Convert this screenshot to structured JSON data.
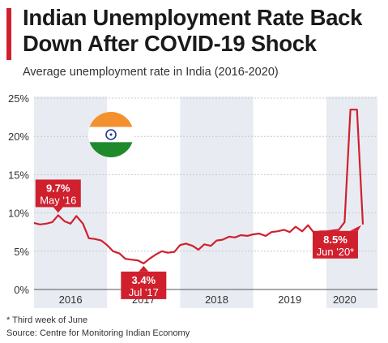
{
  "header": {
    "title": "Indian Unemployment Rate Back Down After COVID-19 Shock",
    "subtitle": "Average unemployment rate in India (2016-2020)"
  },
  "footer": {
    "footnote": "* Third week of June",
    "source": "Source: Centre for Monitoring Indian Economy"
  },
  "colors": {
    "accent": "#d0202e",
    "shade": "#e8ecf2",
    "grid": "#c8c8c8",
    "axis_text": "#333333",
    "flag_saffron": "#f4912f",
    "flag_green": "#1f8a2c",
    "flag_chakra": "#1f3a93"
  },
  "icons": {
    "flag": "india-flag-icon"
  },
  "chart_data": {
    "type": "line",
    "ylim": [
      0,
      25
    ],
    "yticks": [
      0,
      5,
      10,
      15,
      20,
      25
    ],
    "ytick_labels": [
      "0%",
      "5%",
      "10%",
      "15%",
      "20%",
      "25%"
    ],
    "xlim": [
      2016.0,
      2020.7
    ],
    "xticks": [
      {
        "label": "2016",
        "x": 2016.5
      },
      {
        "label": "2017",
        "x": 2017.5
      },
      {
        "label": "2018",
        "x": 2018.5
      },
      {
        "label": "2019",
        "x": 2019.5
      },
      {
        "label": "2020",
        "x": 2020.25
      }
    ],
    "shaded_years": [
      [
        2016.0,
        2017.0
      ],
      [
        2018.0,
        2019.0
      ],
      [
        2020.0,
        2020.7
      ]
    ],
    "grid": true,
    "series": [
      {
        "color": "#d0202e",
        "points": [
          [
            2016.0,
            8.7
          ],
          [
            2016.08,
            8.5
          ],
          [
            2016.17,
            8.6
          ],
          [
            2016.25,
            8.8
          ],
          [
            2016.33,
            9.7
          ],
          [
            2016.42,
            8.9
          ],
          [
            2016.5,
            8.6
          ],
          [
            2016.58,
            9.6
          ],
          [
            2016.67,
            8.6
          ],
          [
            2016.75,
            6.7
          ],
          [
            2016.83,
            6.6
          ],
          [
            2016.92,
            6.4
          ],
          [
            2017.0,
            5.8
          ],
          [
            2017.08,
            5.0
          ],
          [
            2017.17,
            4.7
          ],
          [
            2017.25,
            4.0
          ],
          [
            2017.33,
            3.9
          ],
          [
            2017.42,
            3.8
          ],
          [
            2017.5,
            3.4
          ],
          [
            2017.58,
            4.0
          ],
          [
            2017.67,
            4.6
          ],
          [
            2017.75,
            5.0
          ],
          [
            2017.83,
            4.8
          ],
          [
            2017.92,
            4.9
          ],
          [
            2018.0,
            5.8
          ],
          [
            2018.08,
            6.0
          ],
          [
            2018.17,
            5.7
          ],
          [
            2018.25,
            5.2
          ],
          [
            2018.33,
            5.9
          ],
          [
            2018.42,
            5.7
          ],
          [
            2018.5,
            6.4
          ],
          [
            2018.58,
            6.5
          ],
          [
            2018.67,
            6.9
          ],
          [
            2018.75,
            6.8
          ],
          [
            2018.83,
            7.1
          ],
          [
            2018.92,
            7.0
          ],
          [
            2019.0,
            7.2
          ],
          [
            2019.08,
            7.3
          ],
          [
            2019.17,
            7.0
          ],
          [
            2019.25,
            7.5
          ],
          [
            2019.33,
            7.6
          ],
          [
            2019.42,
            7.8
          ],
          [
            2019.5,
            7.5
          ],
          [
            2019.58,
            8.2
          ],
          [
            2019.67,
            7.6
          ],
          [
            2019.75,
            8.4
          ],
          [
            2019.83,
            7.4
          ],
          [
            2019.92,
            7.6
          ],
          [
            2020.0,
            7.6
          ],
          [
            2020.08,
            7.7
          ],
          [
            2020.17,
            7.8
          ],
          [
            2020.25,
            8.8
          ],
          [
            2020.33,
            23.5
          ],
          [
            2020.42,
            23.5
          ],
          [
            2020.5,
            8.5
          ]
        ]
      }
    ],
    "annotations": [
      {
        "value": "9.7%",
        "date": "May '16",
        "x": 2016.33,
        "y": 9.7,
        "position": "above"
      },
      {
        "value": "3.4%",
        "date": "Jul '17",
        "x": 2017.5,
        "y": 3.4,
        "position": "below"
      },
      {
        "value": "8.5%",
        "date": "Jun '20*",
        "x": 2020.5,
        "y": 8.5,
        "position": "below-left"
      }
    ]
  }
}
